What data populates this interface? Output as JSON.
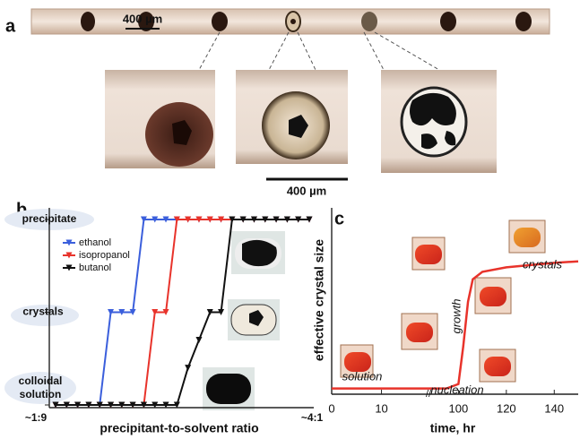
{
  "panel_a": {
    "label": "a",
    "scale_bar_top": "400 µm",
    "scale_bar_bottom": "400 µm"
  },
  "chart_data": [
    {
      "type": "line",
      "panel_label": "b",
      "xlabel": "precipitant-to-solvent ratio",
      "categories": [
        "~1:9",
        null,
        null,
        null,
        null,
        null,
        null,
        null,
        null,
        null,
        null,
        null,
        null,
        null,
        null,
        null,
        null,
        null,
        null,
        null,
        null,
        null,
        null,
        "~4:1"
      ],
      "ylim": [
        0,
        2
      ],
      "yticks": [
        {
          "value": 0,
          "label": "colloidal solution"
        },
        {
          "value": 1,
          "label": "crystals"
        },
        {
          "value": 2,
          "label": "precipitate"
        }
      ],
      "series": [
        {
          "name": "ethanol",
          "color": "#3b5fdc",
          "values": [
            0,
            0,
            0,
            0,
            0,
            1,
            1,
            1,
            2,
            2,
            2,
            2,
            2,
            2,
            2,
            2,
            2,
            2,
            2,
            2,
            2,
            2,
            2,
            2
          ]
        },
        {
          "name": "isopropanol",
          "color": "#e8332b",
          "values": [
            0,
            0,
            0,
            0,
            0,
            0,
            0,
            0,
            0,
            1,
            1,
            2,
            2,
            2,
            2,
            2,
            2,
            2,
            2,
            2,
            2,
            2,
            2,
            2
          ]
        },
        {
          "name": "butanol",
          "color": "#111111",
          "values": [
            0,
            0,
            0,
            0,
            0,
            0,
            0,
            0,
            0,
            0,
            0,
            0,
            0.4,
            0.7,
            1,
            1,
            2,
            2,
            2,
            2,
            2,
            2,
            2,
            2
          ]
        }
      ]
    },
    {
      "type": "line",
      "panel_label": "c",
      "xlabel": "time, hr",
      "ylabel": "effective crystal size",
      "x": [
        0,
        10,
        95,
        100,
        102,
        104,
        106,
        110,
        120,
        140,
        150
      ],
      "color": "#e8332b",
      "values": [
        0.02,
        0.02,
        0.02,
        0.05,
        0.3,
        0.6,
        0.75,
        0.8,
        0.83,
        0.86,
        0.87
      ],
      "xlim": [
        0,
        150
      ],
      "xbreak": [
        18,
        92
      ],
      "ylim": [
        0,
        1
      ],
      "xticks": [
        0,
        10,
        100,
        120,
        140
      ],
      "annotations": [
        "solution",
        "nucleation",
        "growth",
        "crystals"
      ]
    }
  ]
}
